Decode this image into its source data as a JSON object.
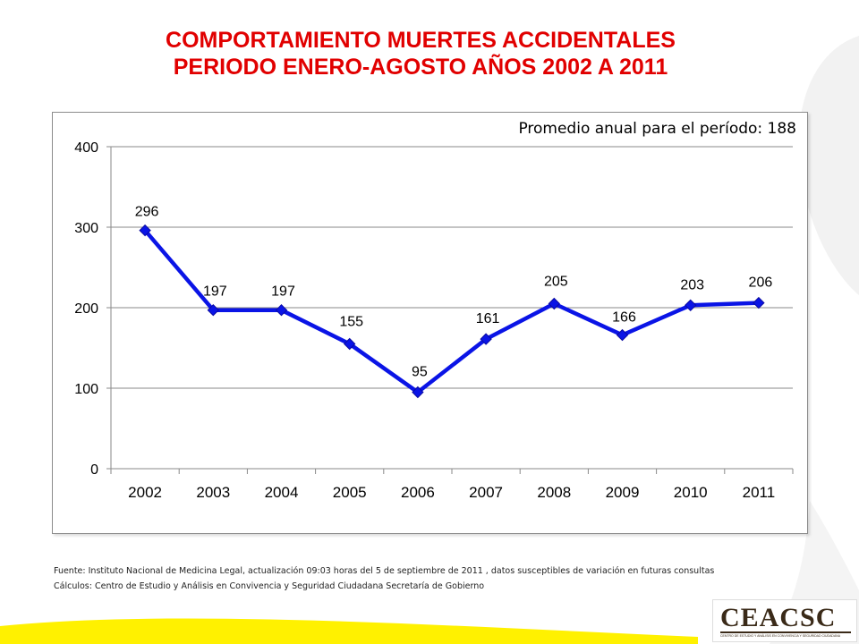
{
  "title": {
    "line1": "COMPORTAMIENTO MUERTES ACCIDENTALES",
    "line2": "PERIODO ENERO-AGOSTO AÑOS 2002 A 2011"
  },
  "annotation": "Promedio  anual para el período: 188",
  "chart_data": {
    "type": "line",
    "categories": [
      "2002",
      "2003",
      "2004",
      "2005",
      "2006",
      "2007",
      "2008",
      "2009",
      "2010",
      "2011"
    ],
    "series": [
      {
        "values": [
          296,
          197,
          197,
          155,
          95,
          161,
          205,
          166,
          203,
          206
        ]
      }
    ],
    "data_labels": [
      "296",
      "197",
      "197",
      "155",
      "95",
      "161",
      "205",
      "166",
      "203",
      "206"
    ],
    "yticks": [
      "0",
      "100",
      "200",
      "300",
      "400"
    ],
    "ylim": [
      0,
      400
    ],
    "grid": true,
    "legend": "none",
    "line_color": "#0a14e6"
  },
  "footnotes": {
    "source": "Fuente: Instituto  Nacional de Medicina Legal, actualización  09:03  horas del  5 de  septiembre de 2011 , datos susceptibles de variación en futuras consultas",
    "calc": "Cálculos:  Centro de Estudio  y Análisis en Convivencia y Seguridad Ciudadana Secretaría de Gobierno"
  },
  "logo": {
    "text": "CEACSC",
    "subtitle": "CENTRO DE ESTUDIO Y ANÁLISIS EN CONVIVENCIA Y SEGURIDAD CIUDADANA"
  }
}
